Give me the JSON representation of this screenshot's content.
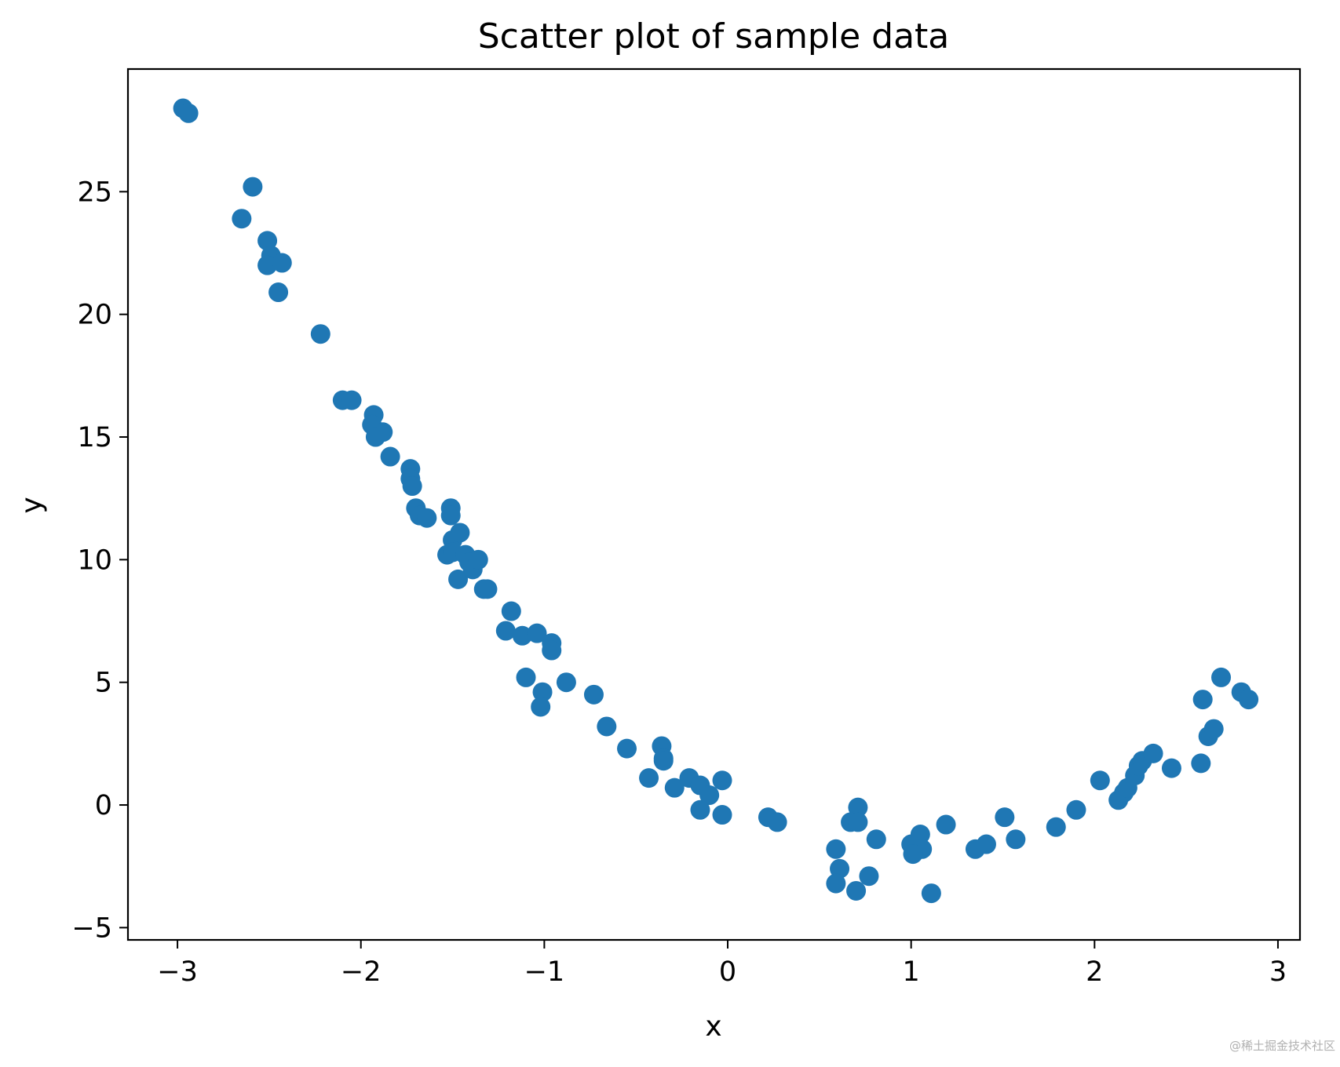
{
  "chart_data": {
    "type": "scatter",
    "title": "Scatter plot of sample data",
    "xlabel": "x",
    "ylabel": "y",
    "xlim": [
      -3.27,
      3.12
    ],
    "ylim": [
      -5.5,
      30.0
    ],
    "grid": false,
    "legend": "none",
    "color": "#1f77b4",
    "xticks": [
      -3,
      -2,
      -1,
      0,
      1,
      2,
      3
    ],
    "xtick_labels": [
      "−3",
      "−2",
      "−1",
      "0",
      "1",
      "2",
      "3"
    ],
    "yticks": [
      -5,
      0,
      5,
      10,
      15,
      20,
      25
    ],
    "ytick_labels": [
      "−5",
      "0",
      "5",
      "10",
      "15",
      "20",
      "25"
    ],
    "series": [
      {
        "x": [
          -2.97,
          -2.94,
          -2.59,
          -2.65,
          -2.51,
          -2.49,
          -2.51,
          -2.43,
          -2.45,
          -2.22,
          -2.1,
          -2.05,
          -1.93,
          -1.94,
          -1.88,
          -1.92,
          -1.84,
          -1.73,
          -1.73,
          -1.72,
          -1.7,
          -1.68,
          -1.64,
          -1.51,
          -1.51,
          -1.5,
          -1.46,
          -1.53,
          -1.5,
          -1.43,
          -1.41,
          -1.39,
          -1.36,
          -1.47,
          -1.33,
          -1.31,
          -1.18,
          -1.21,
          -1.12,
          -1.04,
          -0.96,
          -0.96,
          -1.1,
          -1.01,
          -1.02,
          -0.88,
          -0.73,
          -0.66,
          -0.55,
          -0.36,
          -0.35,
          -0.35,
          -0.43,
          -0.21,
          -0.15,
          -0.29,
          -0.1,
          -0.15,
          -0.03,
          -0.03,
          0.22,
          0.27,
          0.71,
          0.67,
          0.71,
          0.81,
          0.59,
          0.61,
          0.59,
          0.7,
          0.77,
          1.0,
          1.05,
          1.06,
          1.01,
          1.11,
          1.19,
          1.35,
          1.41,
          1.51,
          1.57,
          1.79,
          1.9,
          2.03,
          2.13,
          2.16,
          2.18,
          2.22,
          2.24,
          2.26,
          2.32,
          2.42,
          2.58,
          2.59,
          2.62,
          2.65,
          2.69,
          2.8,
          2.84
        ],
        "y": [
          28.4,
          28.2,
          25.2,
          23.9,
          23.0,
          22.4,
          22.0,
          22.1,
          20.9,
          19.2,
          16.5,
          16.5,
          15.9,
          15.5,
          15.2,
          15.0,
          14.2,
          13.7,
          13.3,
          13.0,
          12.1,
          11.8,
          11.7,
          12.1,
          11.8,
          10.8,
          11.1,
          10.2,
          10.3,
          10.2,
          9.9,
          9.6,
          10.0,
          9.2,
          8.8,
          8.8,
          7.9,
          7.1,
          6.9,
          7.0,
          6.6,
          6.3,
          5.2,
          4.6,
          4.0,
          5.0,
          4.5,
          3.2,
          2.3,
          2.4,
          1.9,
          1.8,
          1.1,
          1.1,
          0.8,
          0.7,
          0.4,
          -0.2,
          1.0,
          -0.4,
          -0.5,
          -0.7,
          -0.1,
          -0.7,
          -0.7,
          -1.4,
          -1.8,
          -2.6,
          -3.2,
          -3.5,
          -2.9,
          -1.6,
          -1.2,
          -1.8,
          -2.0,
          -3.6,
          -0.8,
          -1.8,
          -1.6,
          -0.5,
          -1.4,
          -0.9,
          -0.2,
          1.0,
          0.2,
          0.5,
          0.7,
          1.2,
          1.6,
          1.8,
          2.1,
          1.5,
          1.7,
          4.3,
          2.8,
          3.1,
          5.2,
          4.6,
          4.3
        ]
      }
    ]
  },
  "watermark": "@稀土掘金技术社区"
}
